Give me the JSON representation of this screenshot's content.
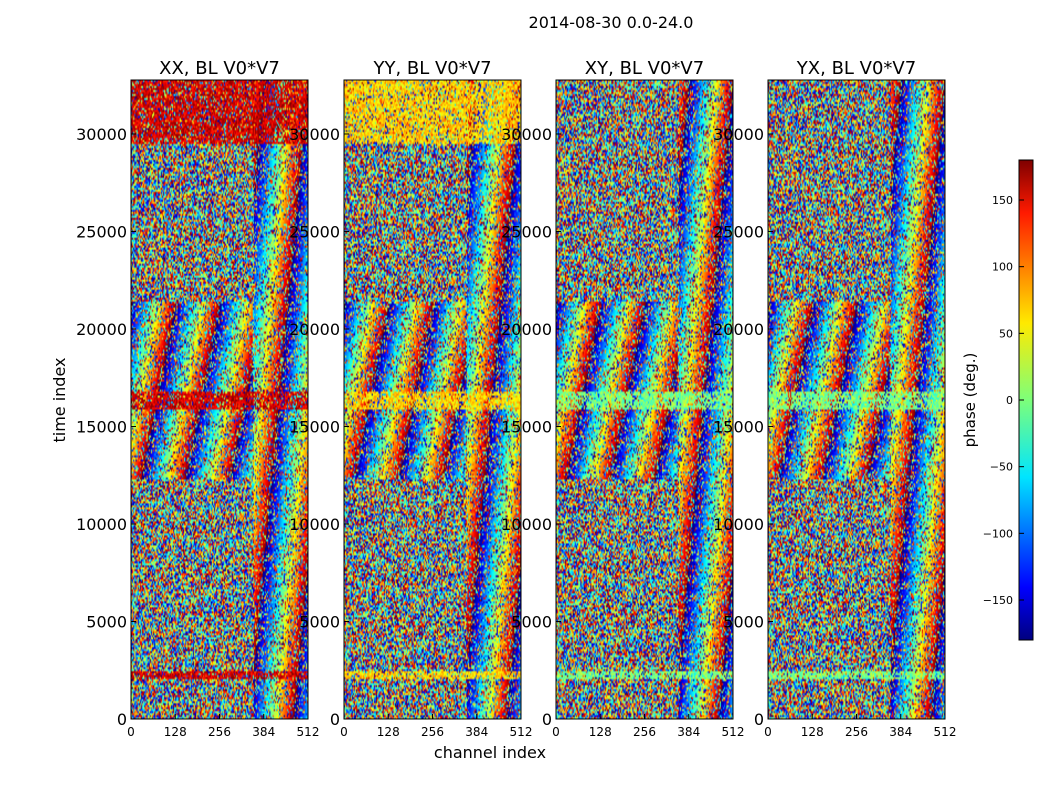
{
  "chart_data": {
    "type": "heatmap",
    "suptitle": "2014-08-30 0.0-24.0",
    "xlabel": "channel index",
    "ylabel": "time index",
    "xlim": [
      0,
      512
    ],
    "ylim": [
      0,
      32768
    ],
    "x_ticks": [
      "0",
      "128",
      "256",
      "384",
      "512"
    ],
    "y_ticks": [
      "0",
      "5000",
      "10000",
      "15000",
      "20000",
      "25000",
      "30000"
    ],
    "panels": [
      {
        "title": "XX, BL V0*V7",
        "dominant_phase_deg": 150
      },
      {
        "title": "YY, BL V0*V7",
        "dominant_phase_deg": 60
      },
      {
        "title": "XY, BL V0*V7",
        "dominant_phase_deg": 0
      },
      {
        "title": "YX, BL V0*V7",
        "dominant_phase_deg": 0
      }
    ],
    "colorbar": {
      "label": "phase (deg.)",
      "range": [
        -180,
        180
      ],
      "ticks": [
        "150",
        "100",
        "50",
        "0",
        "−50",
        "−100",
        "−150"
      ],
      "colormap": "jet"
    }
  }
}
